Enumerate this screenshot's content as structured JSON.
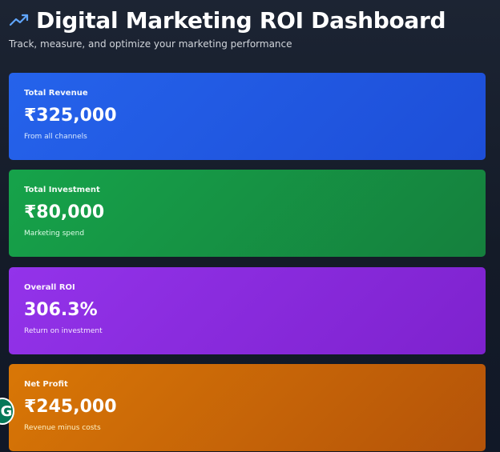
{
  "header": {
    "icon": "trending-up-icon",
    "title": "Digital Marketing ROI Dashboard",
    "subtitle": "Track, measure, and optimize your marketing performance"
  },
  "cards": [
    {
      "label": "Total Revenue",
      "value": "₹325,000",
      "description": "From all channels",
      "color": "#2563eb"
    },
    {
      "label": "Total Investment",
      "value": "₹80,000",
      "description": "Marketing spend",
      "color": "#16a34a"
    },
    {
      "label": "Overall ROI",
      "value": "306.3%",
      "description": "Return on investment",
      "color": "#9333ea"
    },
    {
      "label": "Net Profit",
      "value": "₹245,000",
      "description": "Revenue minus costs",
      "color": "#d97706"
    }
  ],
  "badge": {
    "icon": "grammarly-icon",
    "letter": "G",
    "color": "#047857"
  }
}
